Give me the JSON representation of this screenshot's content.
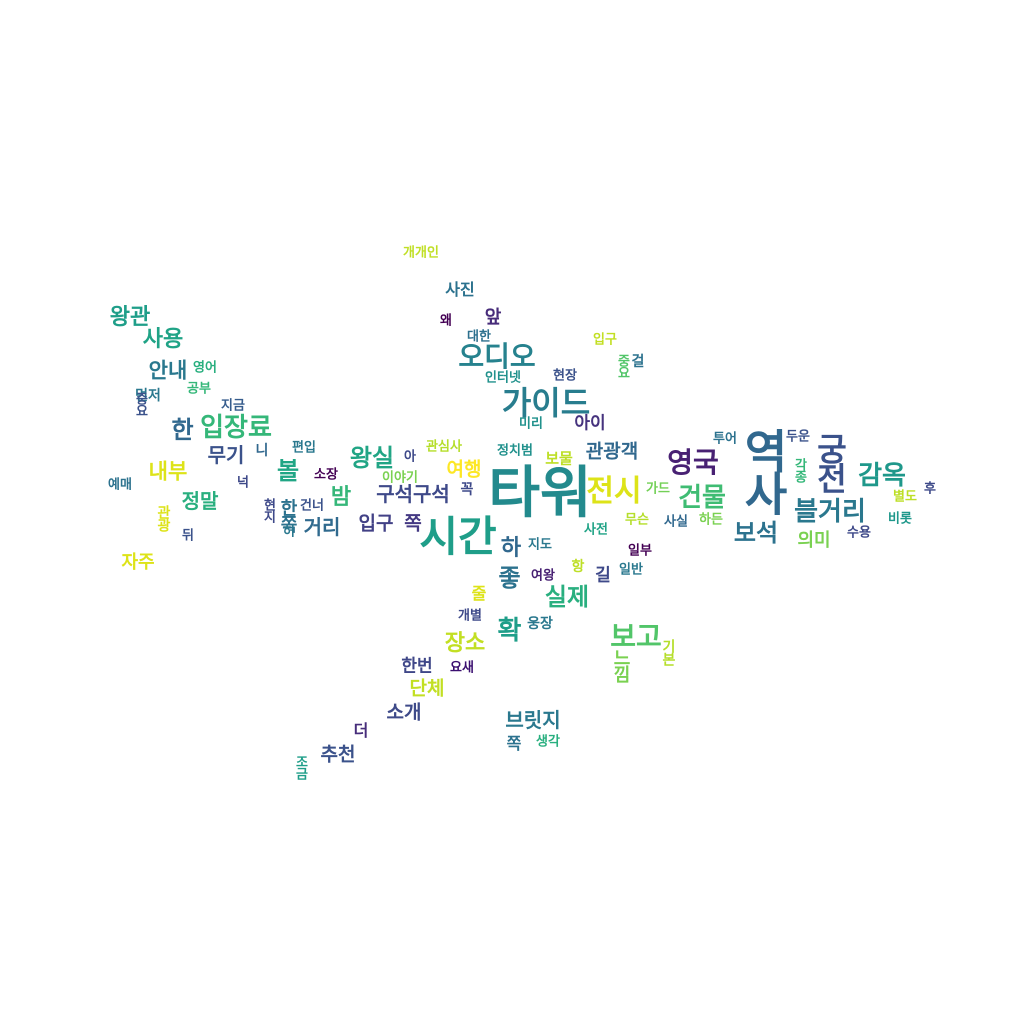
{
  "cloud": {
    "words": [
      {
        "text": "타워",
        "color": "#238a8d"
      },
      {
        "text": "역사",
        "color": "#31688e"
      },
      {
        "text": "시간",
        "color": "#1f9e89"
      },
      {
        "text": "가이드",
        "color": "#287d8e"
      },
      {
        "text": "궁전",
        "color": "#3b528b"
      },
      {
        "text": "전시",
        "color": "#dde318"
      },
      {
        "text": "오디오",
        "color": "#26828e"
      },
      {
        "text": "영국",
        "color": "#482173"
      },
      {
        "text": "입장료",
        "color": "#35b779"
      },
      {
        "text": "건물",
        "color": "#3fbc73"
      },
      {
        "text": "감옥",
        "color": "#1f988b"
      },
      {
        "text": "블거리",
        "color": "#2a788e"
      },
      {
        "text": "왕실",
        "color": "#21a585"
      },
      {
        "text": "보고",
        "color": "#52c569"
      },
      {
        "text": "실제",
        "color": "#29af7f"
      },
      {
        "text": "보석",
        "color": "#2c728e"
      },
      {
        "text": "장소",
        "color": "#c2df23"
      },
      {
        "text": "구석구석",
        "color": "#3e4989"
      },
      {
        "text": "관광객",
        "color": "#31688e"
      },
      {
        "text": "사용",
        "color": "#20a386"
      },
      {
        "text": "왕관",
        "color": "#1f9e89"
      },
      {
        "text": "안내",
        "color": "#2a788e"
      },
      {
        "text": "내부",
        "color": "#dde318"
      },
      {
        "text": "정말",
        "color": "#29af7f"
      },
      {
        "text": "무기",
        "color": "#3b528b"
      },
      {
        "text": "여행",
        "color": "#fde725"
      },
      {
        "text": "거리",
        "color": "#306a8e"
      },
      {
        "text": "입구",
        "color": "#424186"
      },
      {
        "text": "밤",
        "color": "#35b779"
      },
      {
        "text": "볼",
        "color": "#21a685"
      },
      {
        "text": "쪽",
        "color": "#443983"
      },
      {
        "text": "단체",
        "color": "#c2df23"
      },
      {
        "text": "소개",
        "color": "#3e4a89"
      },
      {
        "text": "추천",
        "color": "#3b528b"
      },
      {
        "text": "브릿지",
        "color": "#2a788e"
      },
      {
        "text": "한번",
        "color": "#3f4788"
      },
      {
        "text": "자주",
        "color": "#dde318"
      },
      {
        "text": "의미",
        "color": "#7ad151"
      },
      {
        "text": "아이",
        "color": "#46337e"
      },
      {
        "text": "사진",
        "color": "#2c728e"
      },
      {
        "text": "앞",
        "color": "#472c7a"
      },
      {
        "text": "보물",
        "color": "#bddf26"
      },
      {
        "text": "길",
        "color": "#3e4989"
      },
      {
        "text": "더",
        "color": "#472d7b"
      },
      {
        "text": "쪽",
        "color": "#2c728e"
      },
      {
        "text": "개개인",
        "color": "#c0df25"
      },
      {
        "text": "왜",
        "color": "#440154"
      },
      {
        "text": "대한",
        "color": "#2d708e"
      },
      {
        "text": "입구",
        "color": "#c2df23"
      },
      {
        "text": "걸",
        "color": "#2c728e"
      },
      {
        "text": "인터넷",
        "color": "#21918c"
      },
      {
        "text": "현장",
        "color": "#3b528b"
      },
      {
        "text": "영어",
        "color": "#29af7f"
      },
      {
        "text": "공부",
        "color": "#35b779"
      },
      {
        "text": "먼저",
        "color": "#2a788e"
      },
      {
        "text": "지금",
        "color": "#365c8d"
      },
      {
        "text": "미리",
        "color": "#21918c"
      },
      {
        "text": "투어",
        "color": "#2c728e"
      },
      {
        "text": "두운",
        "color": "#3b528b"
      },
      {
        "text": "편입",
        "color": "#2a788e"
      },
      {
        "text": "관심사",
        "color": "#b5de2b"
      },
      {
        "text": "정치범",
        "color": "#21918c"
      },
      {
        "text": "니",
        "color": "#31688e"
      },
      {
        "text": "소장",
        "color": "#440154"
      },
      {
        "text": "이야기",
        "color": "#7ad151"
      },
      {
        "text": "예매",
        "color": "#2c728e"
      },
      {
        "text": "넉",
        "color": "#3e4989"
      },
      {
        "text": "건너",
        "color": "#3b528b"
      },
      {
        "text": "가드",
        "color": "#73d056"
      },
      {
        "text": "후",
        "color": "#3e4a89"
      },
      {
        "text": "별도",
        "color": "#bddf26"
      },
      {
        "text": "무슨",
        "color": "#b5de2b"
      },
      {
        "text": "사실",
        "color": "#31688e"
      },
      {
        "text": "하든",
        "color": "#7ad151"
      },
      {
        "text": "비롯",
        "color": "#1f988b"
      },
      {
        "text": "사전",
        "color": "#20a386"
      },
      {
        "text": "지도",
        "color": "#2a788e"
      },
      {
        "text": "수용",
        "color": "#3e4989"
      },
      {
        "text": "뒤",
        "color": "#3b528b"
      },
      {
        "text": "일부",
        "color": "#440154"
      },
      {
        "text": "일반",
        "color": "#2a788e"
      },
      {
        "text": "여왕",
        "color": "#482173"
      },
      {
        "text": "웅장",
        "color": "#2a788e"
      },
      {
        "text": "개별",
        "color": "#3e4989"
      },
      {
        "text": "요새",
        "color": "#3b0f70"
      },
      {
        "text": "생각",
        "color": "#29af7f"
      },
      {
        "text": "줄",
        "color": "#dde318"
      },
      {
        "text": "느낌",
        "color": "#7ad151"
      },
      {
        "text": "기본",
        "color": "#b5de2b"
      },
      {
        "text": "한",
        "color": "#31688e"
      },
      {
        "text": "현지",
        "color": "#3e4989"
      },
      {
        "text": "한쪽",
        "color": "#2c728e"
      },
      {
        "text": "관광",
        "color": "#dde318"
      },
      {
        "text": "각종",
        "color": "#35b779"
      },
      {
        "text": "조금",
        "color": "#1f9e89"
      },
      {
        "text": "꼭",
        "color": "#3e4989"
      },
      {
        "text": "하",
        "color": "#31688e"
      },
      {
        "text": "항",
        "color": "#bddf26"
      },
      {
        "text": "중요",
        "color": "#52c569"
      },
      {
        "text": "중요",
        "color": "#3b528b"
      },
      {
        "text": "좋",
        "color": "#2c728e"
      },
      {
        "text": "확",
        "color": "#1f9e89"
      },
      {
        "text": "허",
        "color": "#2a788e"
      },
      {
        "text": "아",
        "color": "#3e4989"
      }
    ]
  }
}
